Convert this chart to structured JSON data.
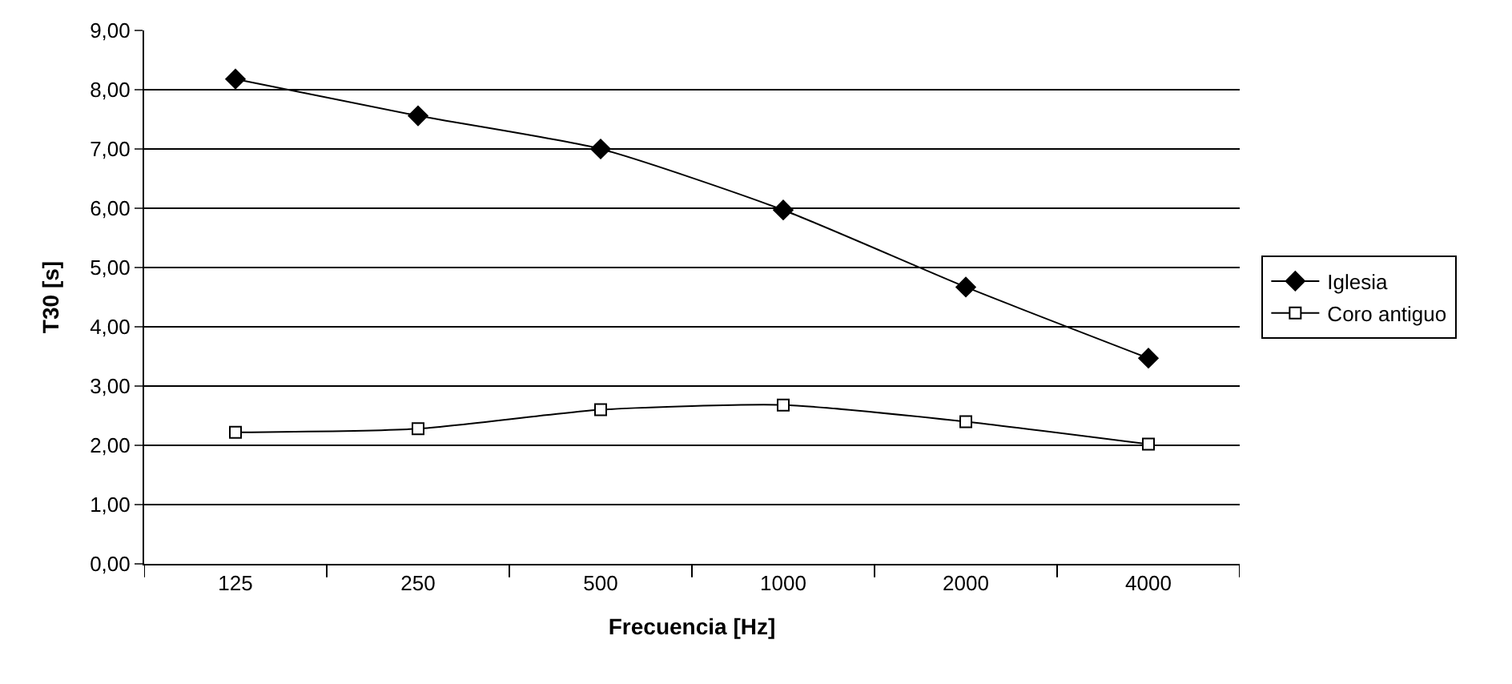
{
  "chart_data": {
    "type": "line",
    "xlabel": "Frecuencia [Hz]",
    "ylabel": "T30 [s]",
    "categories": [
      "125",
      "250",
      "500",
      "1000",
      "2000",
      "4000"
    ],
    "series": [
      {
        "name": "Iglesia",
        "color": "#000000",
        "marker": "diamond",
        "values": [
          8.18,
          7.56,
          7.0,
          5.97,
          4.67,
          3.47
        ]
      },
      {
        "name": "Coro antiguo",
        "color": "#000000",
        "marker": "square",
        "values": [
          2.22,
          2.28,
          2.6,
          2.68,
          2.4,
          2.02
        ]
      }
    ],
    "ylim": [
      0,
      9
    ],
    "yticks": [
      {
        "value": 0,
        "label": "0,00"
      },
      {
        "value": 1,
        "label": "1,00"
      },
      {
        "value": 2,
        "label": "2,00"
      },
      {
        "value": 3,
        "label": "3,00"
      },
      {
        "value": 4,
        "label": "4,00"
      },
      {
        "value": 5,
        "label": "5,00"
      },
      {
        "value": 6,
        "label": "6,00"
      },
      {
        "value": 7,
        "label": "7,00"
      },
      {
        "value": 8,
        "label": "8,00"
      },
      {
        "value": 9,
        "label": "9,00"
      }
    ],
    "grid": "y",
    "legend": "right",
    "line_style": "solid"
  }
}
